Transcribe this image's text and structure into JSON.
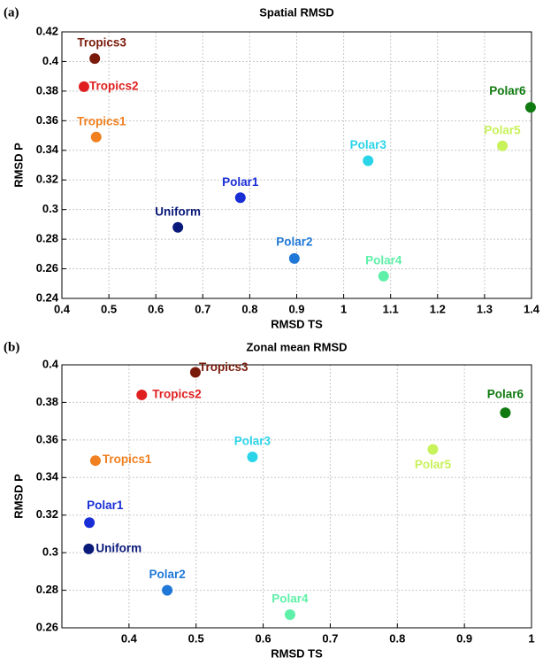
{
  "chart_data": [
    {
      "type": "scatter",
      "panel": "(a)",
      "title": "Spatial RMSD",
      "x_label": "RMSD TS",
      "y_label": "RMSD P",
      "xlim": [
        0.4,
        1.4
      ],
      "xticks": [
        0.4,
        0.5,
        0.6,
        0.7,
        0.8,
        0.9,
        1,
        1.1,
        1.2,
        1.3,
        1.4
      ],
      "ylim": [
        0.24,
        0.42
      ],
      "yticks": [
        0.24,
        0.26,
        0.28,
        0.3,
        0.32,
        0.34,
        0.36,
        0.38,
        0.4,
        0.42
      ],
      "grid": true,
      "point_labels": [
        "Tropics3",
        "Tropics2",
        "Tropics1",
        "Uniform",
        "Polar1",
        "Polar2",
        "Polar3",
        "Polar4",
        "Polar5",
        "Polar6"
      ],
      "x": [
        0.47,
        0.447,
        0.473,
        0.647,
        0.78,
        0.895,
        1.052,
        1.085,
        1.338,
        1.398
      ],
      "values": [
        0.402,
        0.383,
        0.349,
        0.288,
        0.308,
        0.267,
        0.333,
        0.255,
        0.343,
        0.369
      ],
      "colors": [
        "#7a1a0a",
        "#e02020",
        "#f08020",
        "#0a1a7a",
        "#1a2ed6",
        "#1f78d8",
        "#2ad4e8",
        "#5ef0a8",
        "#c8f25a",
        "#0f7a0f"
      ]
    },
    {
      "type": "scatter",
      "panel": "(b)",
      "title": "Zonal mean RMSD",
      "x_label": "RMSD TS",
      "y_label": "RMSD P",
      "xlim": [
        0.3,
        1
      ],
      "xticks": [
        0.4,
        0.5,
        0.6,
        0.7,
        0.8,
        0.9,
        1
      ],
      "ylim": [
        0.26,
        0.4
      ],
      "yticks": [
        0.26,
        0.28,
        0.3,
        0.32,
        0.34,
        0.36,
        0.38,
        0.4
      ],
      "grid": true,
      "point_labels": [
        "Tropics3",
        "Tropics2",
        "Tropics1",
        "Uniform",
        "Polar1",
        "Polar2",
        "Polar3",
        "Polar4",
        "Polar5",
        "Polar6"
      ],
      "x": [
        0.499,
        0.419,
        0.35,
        0.34,
        0.341,
        0.457,
        0.584,
        0.64,
        0.853,
        0.961
      ],
      "values": [
        0.396,
        0.384,
        0.349,
        0.302,
        0.316,
        0.28,
        0.351,
        0.267,
        0.355,
        0.3745
      ],
      "colors": [
        "#7a1a0a",
        "#e02020",
        "#f08020",
        "#0a1a7a",
        "#1a2ed6",
        "#1f78d8",
        "#2ad4e8",
        "#5ef0a8",
        "#c8f25a",
        "#0f7a0f"
      ]
    }
  ]
}
